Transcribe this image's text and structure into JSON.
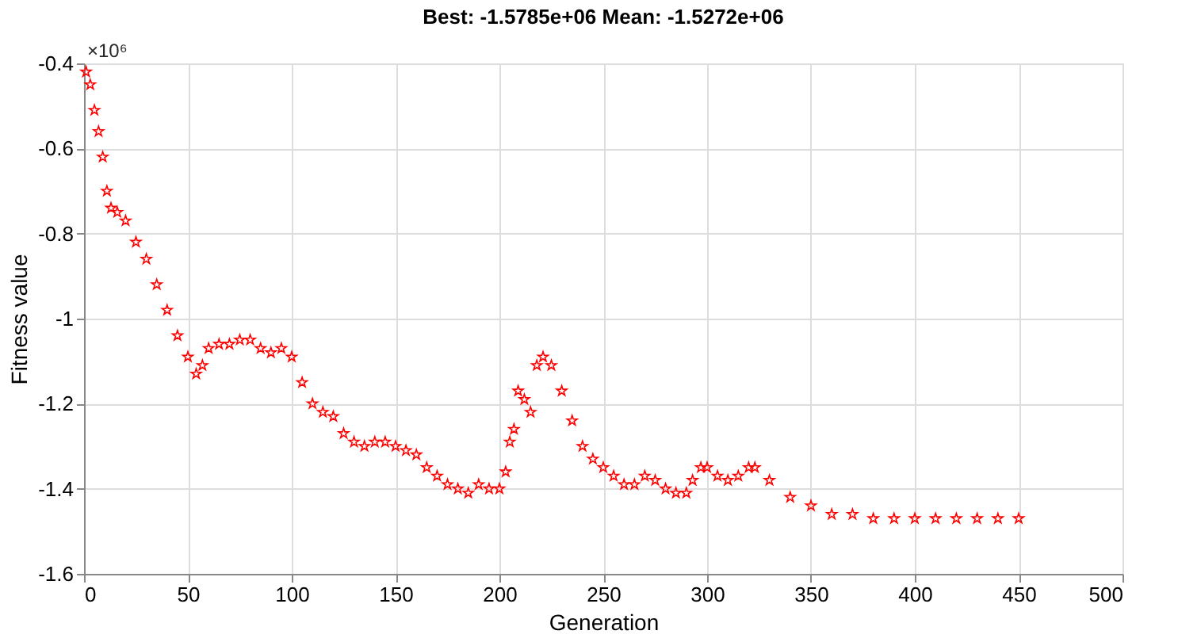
{
  "chart_data": {
    "type": "scatter",
    "title": "Best: -1.5785e+06 Mean: -1.5272e+06",
    "xlabel": "Generation",
    "ylabel": "Fitness value",
    "annotations": [
      "×10⁶"
    ],
    "xlim": [
      0,
      500
    ],
    "xticks": [
      0,
      50,
      100,
      150,
      200,
      250,
      300,
      350,
      400,
      450,
      500
    ],
    "ylim": [
      -1.6,
      -0.4
    ],
    "yticks": [
      -1.6,
      -1.4,
      -1.2,
      -1,
      -0.8,
      -0.6,
      -0.4
    ],
    "grid": true,
    "marker": "star",
    "series": [
      {
        "color": "#ff0000",
        "x": [
          1,
          3,
          5,
          7,
          9,
          11,
          13,
          16,
          20,
          25,
          30,
          35,
          40,
          45,
          50,
          54,
          57,
          60,
          65,
          70,
          75,
          80,
          85,
          90,
          95,
          100,
          105,
          110,
          115,
          120,
          125,
          130,
          135,
          140,
          145,
          150,
          155,
          160,
          165,
          170,
          175,
          180,
          185,
          190,
          195,
          200,
          203,
          205,
          207,
          209,
          212,
          215,
          218,
          221,
          225,
          230,
          235,
          240,
          245,
          250,
          255,
          260,
          265,
          270,
          275,
          280,
          285,
          290,
          293,
          297,
          300,
          305,
          310,
          315,
          320,
          323,
          330,
          340,
          350,
          360,
          370,
          380,
          390,
          400,
          410,
          420,
          430,
          440,
          450
        ],
        "values": [
          -0.42,
          -0.45,
          -0.51,
          -0.56,
          -0.62,
          -0.7,
          -0.74,
          -0.75,
          -0.77,
          -0.82,
          -0.86,
          -0.92,
          -0.98,
          -1.04,
          -1.09,
          -1.13,
          -1.11,
          -1.07,
          -1.06,
          -1.06,
          -1.05,
          -1.05,
          -1.07,
          -1.08,
          -1.07,
          -1.09,
          -1.15,
          -1.2,
          -1.22,
          -1.23,
          -1.27,
          -1.29,
          -1.3,
          -1.29,
          -1.29,
          -1.3,
          -1.31,
          -1.32,
          -1.35,
          -1.37,
          -1.39,
          -1.4,
          -1.41,
          -1.39,
          -1.4,
          -1.4,
          -1.36,
          -1.29,
          -1.26,
          -1.17,
          -1.19,
          -1.22,
          -1.11,
          -1.09,
          -1.11,
          -1.17,
          -1.24,
          -1.3,
          -1.33,
          -1.35,
          -1.37,
          -1.39,
          -1.39,
          -1.37,
          -1.38,
          -1.4,
          -1.41,
          -1.41,
          -1.38,
          -1.35,
          -1.35,
          -1.37,
          -1.38,
          -1.37,
          -1.35,
          -1.35,
          -1.38,
          -1.42,
          -1.44,
          -1.46,
          -1.46,
          -1.47,
          -1.47,
          -1.47,
          -1.47,
          -1.47,
          -1.47,
          -1.47,
          -1.47
        ]
      }
    ]
  }
}
